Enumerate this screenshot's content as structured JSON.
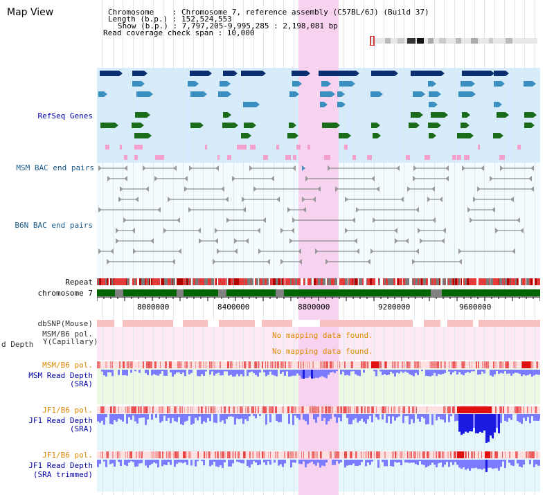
{
  "page": {
    "title": "Map View",
    "info": {
      "chromosome": "Chromosome    : Chromosome 7, reference assembly (C57BL/6J) (Build 37)",
      "length": "Length (b.p.) : 152,524,553",
      "show": "Show (b.p.) : 7,797,205-9,995,285 : 2,198,081 bp",
      "span": "Read coverage check span : 10,000"
    }
  },
  "tracks": {
    "refseq": "RefSeq Genes",
    "msm_bac": "MSM BAC end pairs",
    "b6n_bac": "B6N BAC end pairs",
    "repeat": "Repeat",
    "chromosome": "chromosome 7",
    "dbsnp": "dbSNP(Mouse)",
    "msm_b6_pol_a": "MSM/B6 pol.",
    "depth_cap": "d Depth",
    "depth_cap2": "Y(Capillary)",
    "no_map_1": "No mapping data found.",
    "no_map_2": "No mapping data found.",
    "msm_b6_pol_b": "MSM/B6 pol.",
    "msm_read_depth": "MSM Read Depth",
    "msm_sra": "(SRA)",
    "jf1_b6_pol_a": "JF1/B6 pol.",
    "jf1_read_depth": "JF1 Read Depth",
    "jf1_sra": "(SRA)",
    "jf1_b6_pol_b": "JF1/B6 pol.",
    "jf1_read_depth2": "JF1 Read Depth",
    "jf1_sra_trimmed": "(SRA trimmed)"
  },
  "ruler": {
    "ticks": [
      "8000000",
      "8400000",
      "8800000",
      "9200000",
      "9600000"
    ]
  },
  "colors": {
    "refseq_bg": "#d6ecfa",
    "gene_dark": "#0a2e6e",
    "gene_mid": "#3a8fc0",
    "gene_green": "#1a6b1a",
    "gene_pink": "#f4a0cc",
    "highlight": "#f7d3ef",
    "depth": "#7b7bff",
    "depth_dark": "#1a1ae0"
  }
}
